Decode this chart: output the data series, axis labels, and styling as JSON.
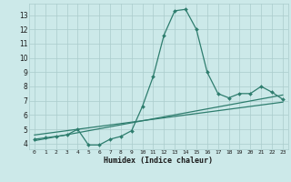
{
  "x": [
    0,
    1,
    2,
    3,
    4,
    5,
    6,
    7,
    8,
    9,
    10,
    11,
    12,
    13,
    14,
    15,
    16,
    17,
    18,
    19,
    20,
    21,
    22,
    23
  ],
  "y_main": [
    4.3,
    4.4,
    4.5,
    4.6,
    5.0,
    3.9,
    3.9,
    4.3,
    4.5,
    4.9,
    6.6,
    8.7,
    11.6,
    13.3,
    13.4,
    12.0,
    9.0,
    7.5,
    7.2,
    7.5,
    7.5,
    8.0,
    7.6,
    7.1
  ],
  "trend1_x": [
    0,
    23
  ],
  "trend1_y": [
    4.2,
    7.4
  ],
  "trend2_x": [
    0,
    23
  ],
  "trend2_y": [
    4.6,
    6.9
  ],
  "line_color": "#2e7d6e",
  "bg_color": "#cce9e9",
  "grid_color": "#aacccc",
  "xlabel": "Humidex (Indice chaleur)",
  "ylabel_ticks": [
    4,
    5,
    6,
    7,
    8,
    9,
    10,
    11,
    12,
    13
  ],
  "xlim": [
    -0.5,
    23.5
  ],
  "ylim": [
    3.6,
    13.8
  ]
}
